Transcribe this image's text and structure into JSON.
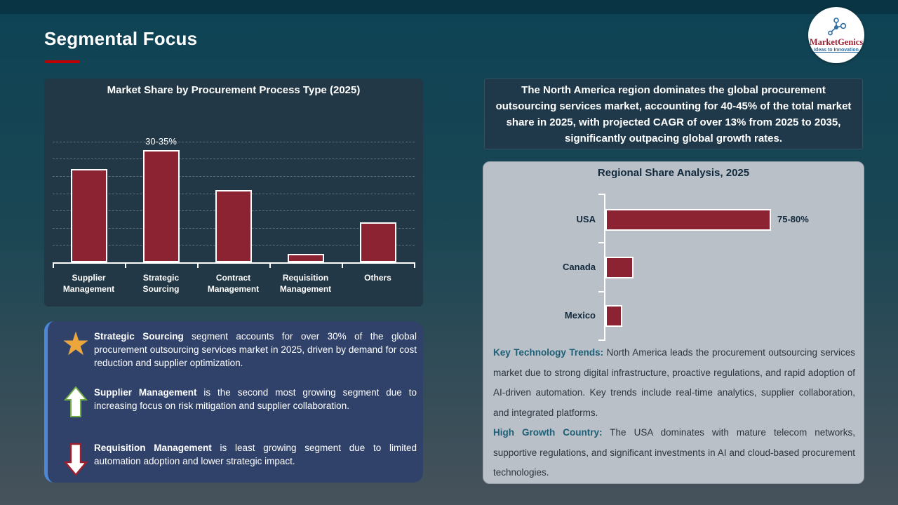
{
  "slide": {
    "title": "Segmental Focus",
    "accent_color": "#c00000"
  },
  "logo": {
    "name": "MarketGenics",
    "tagline": "Ideas to Innovation",
    "icon": "molecule-network-icon",
    "name_color": "#9e2235",
    "tagline_color": "#2e6da4"
  },
  "colors": {
    "bar_fill": "#8b2332",
    "bar_border": "#ffffff",
    "chart_panel_bg": "#233846",
    "summary_panel_bg": "#20394a",
    "regional_panel_bg": "#b9c0c8",
    "insights_panel_bg": "#30426a",
    "insights_accent": "#4d87d9",
    "teal_heading": "#1d5f76",
    "star_gold": "#eca63c",
    "arrow_up_outline": "#70ad47",
    "arrow_down_outline": "#9e1f2e"
  },
  "chart_data": [
    {
      "type": "bar",
      "orientation": "vertical",
      "title": "Market Share by Procurement Process Type (2025)",
      "categories": [
        "Supplier Management",
        "Strategic Sourcing",
        "Contract Management",
        "Requisition Management",
        "Others"
      ],
      "values": [
        27,
        32.5,
        21,
        2.5,
        11.5
      ],
      "bar_label": {
        "index": 1,
        "text": "30-35%"
      },
      "xlabel": "",
      "ylabel": "",
      "ylim": [
        0,
        35
      ],
      "gridline_step": 5,
      "grid": true,
      "legend": false
    },
    {
      "type": "bar",
      "orientation": "horizontal",
      "title": "Regional Share Analysis, 2025",
      "categories": [
        "USA",
        "Canada",
        "Mexico"
      ],
      "values": [
        77.5,
        13,
        8
      ],
      "bar_label": {
        "index": 0,
        "text": "75-80%"
      },
      "xlabel": "",
      "ylabel": "",
      "xlim": [
        0,
        85
      ],
      "grid": false,
      "legend": false
    }
  ],
  "summary_panel": {
    "text": "The North America region dominates the global procurement outsourcing services market, accounting for 40-45% of the total market share in 2025, with projected CAGR of over 13% from 2025 to 2035, significantly outpacing global growth rates."
  },
  "insights": [
    {
      "icon": "star-icon",
      "lead": "Strategic Sourcing",
      "text": " segment accounts for over 30% of the global procurement outsourcing services market in 2025, driven by demand for cost reduction and supplier optimization."
    },
    {
      "icon": "arrow-up-icon",
      "lead": "Supplier Management",
      "text": " is the second most growing segment due to increasing focus on risk mitigation and supplier collaboration."
    },
    {
      "icon": "arrow-down-icon",
      "lead": "Requisition Management",
      "text": " is least growing segment due to limited automation adoption and lower strategic impact."
    }
  ],
  "regional_text": [
    {
      "heading": "Key Technology Trends:",
      "body": " North America leads the procurement outsourcing services market due to strong digital infrastructure, proactive regulations, and rapid adoption of AI-driven automation. Key trends include real-time analytics, supplier collaboration, and integrated platforms."
    },
    {
      "heading": "High Growth Country:",
      "body": " The USA dominates with mature telecom networks, supportive regulations, and significant investments in AI and cloud-based procurement technologies."
    }
  ]
}
